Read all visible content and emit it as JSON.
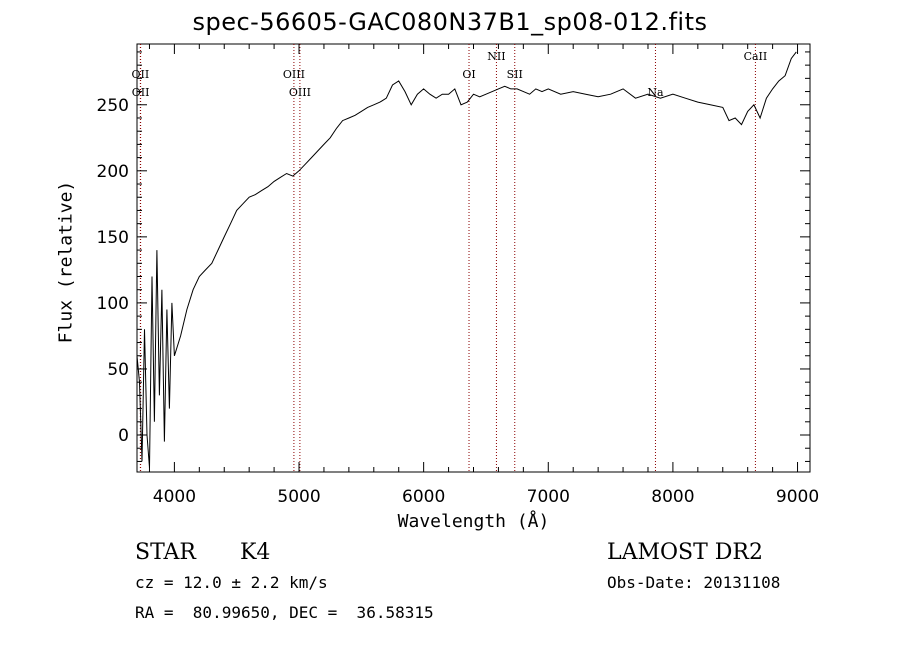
{
  "chart_data": {
    "type": "line",
    "title": "spec-56605-GAC080N37B1_sp08-012.fits",
    "xlabel": "Wavelength (Å)",
    "ylabel": "Flux (relative)",
    "xlim": [
      3700,
      9100
    ],
    "ylim": [
      -28,
      296
    ],
    "xticks": [
      4000,
      5000,
      6000,
      7000,
      8000,
      9000
    ],
    "yticks": [
      0,
      50,
      100,
      150,
      200,
      250
    ],
    "grid": false,
    "line_color": "#000000",
    "series": [
      {
        "x": [
          3700,
          3720,
          3740,
          3760,
          3780,
          3800,
          3820,
          3840,
          3860,
          3880,
          3900,
          3920,
          3940,
          3960,
          3980,
          4000,
          4050,
          4100,
          4150,
          4200,
          4250,
          4300,
          4350,
          4400,
          4450,
          4500,
          4550,
          4600,
          4650,
          4700,
          4750,
          4800,
          4850,
          4900,
          4950,
          5000,
          5050,
          5100,
          5150,
          5200,
          5250,
          5300,
          5350,
          5400,
          5450,
          5500,
          5550,
          5600,
          5650,
          5700,
          5750,
          5800,
          5850,
          5900,
          5950,
          6000,
          6050,
          6100,
          6150,
          6200,
          6250,
          6300,
          6350,
          6400,
          6450,
          6500,
          6550,
          6600,
          6650,
          6700,
          6750,
          6800,
          6850,
          6900,
          6950,
          7000,
          7100,
          7200,
          7300,
          7400,
          7500,
          7600,
          7700,
          7800,
          7900,
          8000,
          8100,
          8200,
          8300,
          8400,
          8450,
          8500,
          8550,
          8600,
          8650,
          8700,
          8750,
          8800,
          8850,
          8900,
          8950,
          8990
        ],
        "y": [
          60,
          40,
          -20,
          80,
          0,
          -25,
          120,
          10,
          140,
          30,
          110,
          -5,
          95,
          20,
          100,
          60,
          75,
          95,
          110,
          120,
          125,
          130,
          140,
          150,
          160,
          170,
          175,
          180,
          182,
          185,
          188,
          192,
          195,
          198,
          196,
          200,
          205,
          210,
          215,
          220,
          225,
          232,
          238,
          240,
          242,
          245,
          248,
          250,
          252,
          255,
          265,
          268,
          260,
          250,
          258,
          262,
          258,
          255,
          258,
          258,
          262,
          250,
          252,
          258,
          256,
          258,
          260,
          262,
          264,
          262,
          262,
          260,
          258,
          262,
          260,
          262,
          258,
          260,
          258,
          256,
          258,
          262,
          255,
          258,
          255,
          258,
          255,
          252,
          250,
          248,
          238,
          240,
          235,
          245,
          250,
          240,
          255,
          262,
          268,
          272,
          285,
          290
        ]
      }
    ],
    "lines": [
      {
        "label": "OII",
        "x": 3727,
        "row": 1
      },
      {
        "label": "OII",
        "x": 3729,
        "row": 2
      },
      {
        "label": "OIII",
        "x": 4959,
        "row": 1
      },
      {
        "label": "OIII",
        "x": 5007,
        "row": 2
      },
      {
        "label": "OI",
        "x": 6364,
        "row": 1
      },
      {
        "label": "NII",
        "x": 6584,
        "row": 0
      },
      {
        "label": "SII",
        "x": 6731,
        "row": 1
      },
      {
        "label": "Na",
        "x": 7860,
        "row": 2
      },
      {
        "label": "CaII",
        "x": 8662,
        "row": 0
      }
    ],
    "marker_color": "#8b0000"
  },
  "info": {
    "class_label": "STAR",
    "subclass": "K4",
    "survey": "LAMOST DR2",
    "cz": "cz = 12.0 ± 2.2 km/s",
    "obs_date": "Obs-Date: 20131108",
    "radec": "RA =  80.99650, DEC =  36.58315"
  }
}
